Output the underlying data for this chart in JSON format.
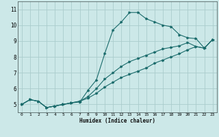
{
  "xlabel": "Humidex (Indice chaleur)",
  "background_color": "#cce8e8",
  "grid_color": "#aacccc",
  "line_color": "#1a6b6b",
  "xlim": [
    -0.5,
    23.5
  ],
  "ylim": [
    4.5,
    11.5
  ],
  "xticks": [
    0,
    1,
    2,
    3,
    4,
    5,
    6,
    7,
    8,
    9,
    10,
    11,
    12,
    13,
    14,
    15,
    16,
    17,
    18,
    19,
    20,
    21,
    22,
    23
  ],
  "yticks": [
    5,
    6,
    7,
    8,
    9,
    10,
    11
  ],
  "series": [
    {
      "x": [
        0,
        1,
        2,
        3,
        4,
        5,
        6,
        7,
        8,
        9,
        10,
        11,
        12,
        13,
        14,
        15,
        16,
        17,
        18,
        19,
        20,
        21,
        22,
        23
      ],
      "y": [
        5.0,
        5.3,
        5.2,
        4.8,
        4.9,
        5.0,
        5.1,
        5.15,
        5.9,
        6.55,
        8.2,
        9.7,
        10.2,
        10.8,
        10.8,
        10.4,
        10.2,
        10.0,
        9.9,
        9.4,
        9.2,
        9.15,
        8.55,
        9.1
      ]
    },
    {
      "x": [
        0,
        1,
        2,
        3,
        4,
        5,
        6,
        7,
        8,
        9,
        10,
        11,
        12,
        13,
        14,
        15,
        16,
        17,
        18,
        19,
        20,
        21,
        22,
        23
      ],
      "y": [
        5.0,
        5.3,
        5.2,
        4.8,
        4.9,
        5.0,
        5.1,
        5.2,
        5.5,
        6.0,
        6.6,
        7.0,
        7.4,
        7.7,
        7.9,
        8.1,
        8.3,
        8.5,
        8.6,
        8.7,
        8.9,
        8.65,
        8.55,
        9.1
      ]
    },
    {
      "x": [
        0,
        1,
        2,
        3,
        4,
        5,
        6,
        7,
        8,
        9,
        10,
        11,
        12,
        13,
        14,
        15,
        16,
        17,
        18,
        19,
        20,
        21,
        22,
        23
      ],
      "y": [
        5.0,
        5.3,
        5.2,
        4.8,
        4.9,
        5.0,
        5.1,
        5.2,
        5.4,
        5.7,
        6.1,
        6.4,
        6.7,
        6.9,
        7.1,
        7.3,
        7.6,
        7.8,
        8.0,
        8.2,
        8.45,
        8.65,
        8.55,
        9.1
      ]
    }
  ]
}
